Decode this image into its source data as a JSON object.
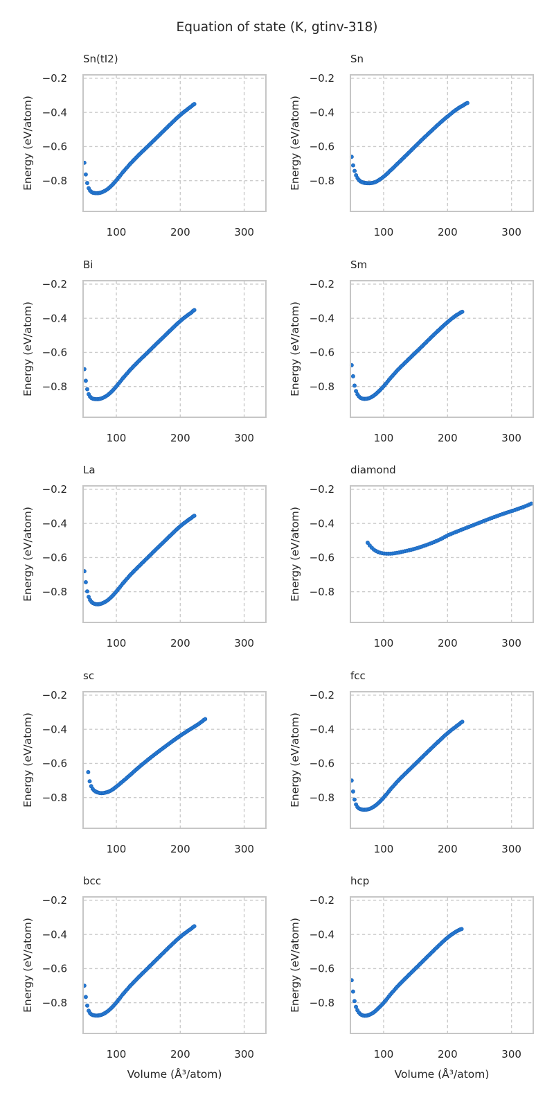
{
  "chart_data": {
    "type": "scatter",
    "title": "Equation of state (K, gtinv-318)",
    "xlabel": "Volume (Å³/atom)",
    "ylabel": "Energy (eV/atom)",
    "xlim": [
      48,
      334
    ],
    "ylim": [
      -0.98,
      -0.18
    ],
    "xticks": [
      100,
      200,
      300
    ],
    "yticks": [
      -0.2,
      -0.4,
      -0.6,
      -0.8
    ],
    "ytick_labels": [
      "−0.2",
      "−0.4",
      "−0.6",
      "−0.8"
    ],
    "grid": true,
    "grid_style": "dashed",
    "legend": "none",
    "colors": {
      "marker_fill": "#2579d2",
      "marker_edge": "#1b63b8",
      "grid": "#cbcbcb",
      "spine": "#c6c6c6",
      "text": "#262626"
    },
    "subplots": [
      {
        "label": "Sn(tI2)",
        "n_markers": 78,
        "points": [
          [
            50,
            -0.695
          ],
          [
            52,
            -0.757
          ],
          [
            54,
            -0.806
          ],
          [
            56.5,
            -0.842
          ],
          [
            59.5,
            -0.861
          ],
          [
            63,
            -0.87
          ],
          [
            68,
            -0.873
          ],
          [
            73,
            -0.872
          ],
          [
            79,
            -0.865
          ],
          [
            86,
            -0.85
          ],
          [
            93,
            -0.827
          ],
          [
            100,
            -0.797
          ],
          [
            110,
            -0.751
          ],
          [
            122,
            -0.7
          ],
          [
            135,
            -0.65
          ],
          [
            148,
            -0.603
          ],
          [
            161,
            -0.556
          ],
          [
            174,
            -0.508
          ],
          [
            187,
            -0.461
          ],
          [
            199,
            -0.419
          ],
          [
            210,
            -0.386
          ],
          [
            217,
            -0.366
          ],
          [
            222,
            -0.351
          ]
        ]
      },
      {
        "label": "Sn",
        "n_markers": 80,
        "points": [
          [
            50,
            -0.66
          ],
          [
            52,
            -0.706
          ],
          [
            55,
            -0.748
          ],
          [
            58,
            -0.778
          ],
          [
            62,
            -0.799
          ],
          [
            67,
            -0.81
          ],
          [
            73,
            -0.814
          ],
          [
            80,
            -0.814
          ],
          [
            87,
            -0.808
          ],
          [
            94,
            -0.793
          ],
          [
            101,
            -0.773
          ],
          [
            110,
            -0.742
          ],
          [
            122,
            -0.699
          ],
          [
            135,
            -0.652
          ],
          [
            148,
            -0.604
          ],
          [
            161,
            -0.556
          ],
          [
            175,
            -0.507
          ],
          [
            189,
            -0.459
          ],
          [
            202,
            -0.418
          ],
          [
            214,
            -0.383
          ],
          [
            224,
            -0.36
          ],
          [
            231,
            -0.345
          ]
        ]
      },
      {
        "label": "Bi",
        "n_markers": 78,
        "points": [
          [
            50,
            -0.698
          ],
          [
            52,
            -0.76
          ],
          [
            54,
            -0.808
          ],
          [
            56.5,
            -0.843
          ],
          [
            59.5,
            -0.862
          ],
          [
            63,
            -0.871
          ],
          [
            68,
            -0.874
          ],
          [
            73,
            -0.873
          ],
          [
            79,
            -0.866
          ],
          [
            86,
            -0.851
          ],
          [
            93,
            -0.828
          ],
          [
            100,
            -0.798
          ],
          [
            110,
            -0.752
          ],
          [
            122,
            -0.701
          ],
          [
            135,
            -0.651
          ],
          [
            148,
            -0.604
          ],
          [
            161,
            -0.556
          ],
          [
            174,
            -0.509
          ],
          [
            187,
            -0.462
          ],
          [
            199,
            -0.42
          ],
          [
            210,
            -0.387
          ],
          [
            217,
            -0.368
          ],
          [
            222,
            -0.352
          ]
        ]
      },
      {
        "label": "Sm",
        "n_markers": 78,
        "points": [
          [
            50,
            -0.675
          ],
          [
            52,
            -0.733
          ],
          [
            54,
            -0.786
          ],
          [
            56.5,
            -0.824
          ],
          [
            59.5,
            -0.849
          ],
          [
            63,
            -0.864
          ],
          [
            67,
            -0.871
          ],
          [
            72,
            -0.872
          ],
          [
            78,
            -0.867
          ],
          [
            85,
            -0.852
          ],
          [
            92,
            -0.829
          ],
          [
            100,
            -0.798
          ],
          [
            110,
            -0.753
          ],
          [
            122,
            -0.703
          ],
          [
            135,
            -0.655
          ],
          [
            148,
            -0.608
          ],
          [
            161,
            -0.561
          ],
          [
            174,
            -0.513
          ],
          [
            187,
            -0.467
          ],
          [
            199,
            -0.426
          ],
          [
            210,
            -0.393
          ],
          [
            218,
            -0.373
          ],
          [
            223,
            -0.362
          ]
        ]
      },
      {
        "label": "La",
        "n_markers": 78,
        "points": [
          [
            50,
            -0.68
          ],
          [
            52,
            -0.738
          ],
          [
            54,
            -0.79
          ],
          [
            56.5,
            -0.828
          ],
          [
            59.5,
            -0.852
          ],
          [
            63,
            -0.866
          ],
          [
            68,
            -0.873
          ],
          [
            73,
            -0.873
          ],
          [
            79,
            -0.866
          ],
          [
            86,
            -0.851
          ],
          [
            93,
            -0.828
          ],
          [
            100,
            -0.798
          ],
          [
            110,
            -0.752
          ],
          [
            122,
            -0.701
          ],
          [
            135,
            -0.652
          ],
          [
            148,
            -0.604
          ],
          [
            161,
            -0.556
          ],
          [
            174,
            -0.509
          ],
          [
            187,
            -0.462
          ],
          [
            199,
            -0.42
          ],
          [
            210,
            -0.388
          ],
          [
            217,
            -0.369
          ],
          [
            222,
            -0.355
          ]
        ]
      },
      {
        "label": "diamond",
        "n_markers": 80,
        "points": [
          [
            75,
            -0.513
          ],
          [
            78,
            -0.528
          ],
          [
            82,
            -0.544
          ],
          [
            86,
            -0.557
          ],
          [
            91,
            -0.567
          ],
          [
            97,
            -0.574
          ],
          [
            104,
            -0.577
          ],
          [
            112,
            -0.577
          ],
          [
            120,
            -0.573
          ],
          [
            129,
            -0.566
          ],
          [
            140,
            -0.557
          ],
          [
            152,
            -0.545
          ],
          [
            164,
            -0.53
          ],
          [
            177,
            -0.512
          ],
          [
            190,
            -0.491
          ],
          [
            200,
            -0.47
          ],
          [
            215,
            -0.447
          ],
          [
            230,
            -0.425
          ],
          [
            245,
            -0.403
          ],
          [
            260,
            -0.381
          ],
          [
            275,
            -0.36
          ],
          [
            290,
            -0.34
          ],
          [
            305,
            -0.322
          ],
          [
            318,
            -0.305
          ],
          [
            326,
            -0.293
          ],
          [
            331,
            -0.284
          ]
        ]
      },
      {
        "label": "sc",
        "n_markers": 80,
        "points": [
          [
            56,
            -0.651
          ],
          [
            58,
            -0.7
          ],
          [
            61,
            -0.737
          ],
          [
            65,
            -0.758
          ],
          [
            70,
            -0.769
          ],
          [
            76,
            -0.774
          ],
          [
            83,
            -0.771
          ],
          [
            91,
            -0.76
          ],
          [
            99,
            -0.739
          ],
          [
            108,
            -0.711
          ],
          [
            119,
            -0.676
          ],
          [
            131,
            -0.636
          ],
          [
            144,
            -0.595
          ],
          [
            157,
            -0.556
          ],
          [
            170,
            -0.519
          ],
          [
            183,
            -0.483
          ],
          [
            196,
            -0.448
          ],
          [
            208,
            -0.418
          ],
          [
            219,
            -0.392
          ],
          [
            228,
            -0.371
          ],
          [
            235,
            -0.352
          ],
          [
            239,
            -0.34
          ]
        ]
      },
      {
        "label": "fcc",
        "n_markers": 78,
        "points": [
          [
            50,
            -0.7
          ],
          [
            52,
            -0.758
          ],
          [
            54,
            -0.804
          ],
          [
            56.5,
            -0.838
          ],
          [
            59.5,
            -0.858
          ],
          [
            63,
            -0.867
          ],
          [
            68,
            -0.871
          ],
          [
            74,
            -0.87
          ],
          [
            80,
            -0.863
          ],
          [
            87,
            -0.847
          ],
          [
            94,
            -0.824
          ],
          [
            101,
            -0.795
          ],
          [
            111,
            -0.75
          ],
          [
            123,
            -0.7
          ],
          [
            136,
            -0.652
          ],
          [
            149,
            -0.605
          ],
          [
            162,
            -0.557
          ],
          [
            175,
            -0.51
          ],
          [
            188,
            -0.464
          ],
          [
            200,
            -0.423
          ],
          [
            211,
            -0.391
          ],
          [
            218,
            -0.371
          ],
          [
            223,
            -0.356
          ]
        ]
      },
      {
        "label": "bcc",
        "n_markers": 78,
        "points": [
          [
            50,
            -0.7
          ],
          [
            52,
            -0.76
          ],
          [
            54,
            -0.809
          ],
          [
            56.5,
            -0.845
          ],
          [
            59.5,
            -0.864
          ],
          [
            63,
            -0.872
          ],
          [
            68,
            -0.875
          ],
          [
            73,
            -0.874
          ],
          [
            79,
            -0.867
          ],
          [
            86,
            -0.851
          ],
          [
            93,
            -0.828
          ],
          [
            100,
            -0.798
          ],
          [
            110,
            -0.751
          ],
          [
            122,
            -0.7
          ],
          [
            135,
            -0.65
          ],
          [
            148,
            -0.602
          ],
          [
            161,
            -0.554
          ],
          [
            174,
            -0.506
          ],
          [
            187,
            -0.459
          ],
          [
            199,
            -0.418
          ],
          [
            210,
            -0.386
          ],
          [
            217,
            -0.367
          ],
          [
            222,
            -0.352
          ]
        ]
      },
      {
        "label": "hcp",
        "n_markers": 78,
        "points": [
          [
            50,
            -0.668
          ],
          [
            52,
            -0.728
          ],
          [
            54,
            -0.782
          ],
          [
            56.5,
            -0.822
          ],
          [
            59.5,
            -0.848
          ],
          [
            63,
            -0.865
          ],
          [
            67,
            -0.874
          ],
          [
            72,
            -0.876
          ],
          [
            78,
            -0.87
          ],
          [
            85,
            -0.855
          ],
          [
            92,
            -0.831
          ],
          [
            100,
            -0.8
          ],
          [
            110,
            -0.754
          ],
          [
            122,
            -0.703
          ],
          [
            135,
            -0.654
          ],
          [
            148,
            -0.606
          ],
          [
            161,
            -0.558
          ],
          [
            174,
            -0.51
          ],
          [
            187,
            -0.463
          ],
          [
            199,
            -0.422
          ],
          [
            210,
            -0.392
          ],
          [
            216,
            -0.378
          ],
          [
            222,
            -0.368
          ]
        ]
      }
    ]
  }
}
